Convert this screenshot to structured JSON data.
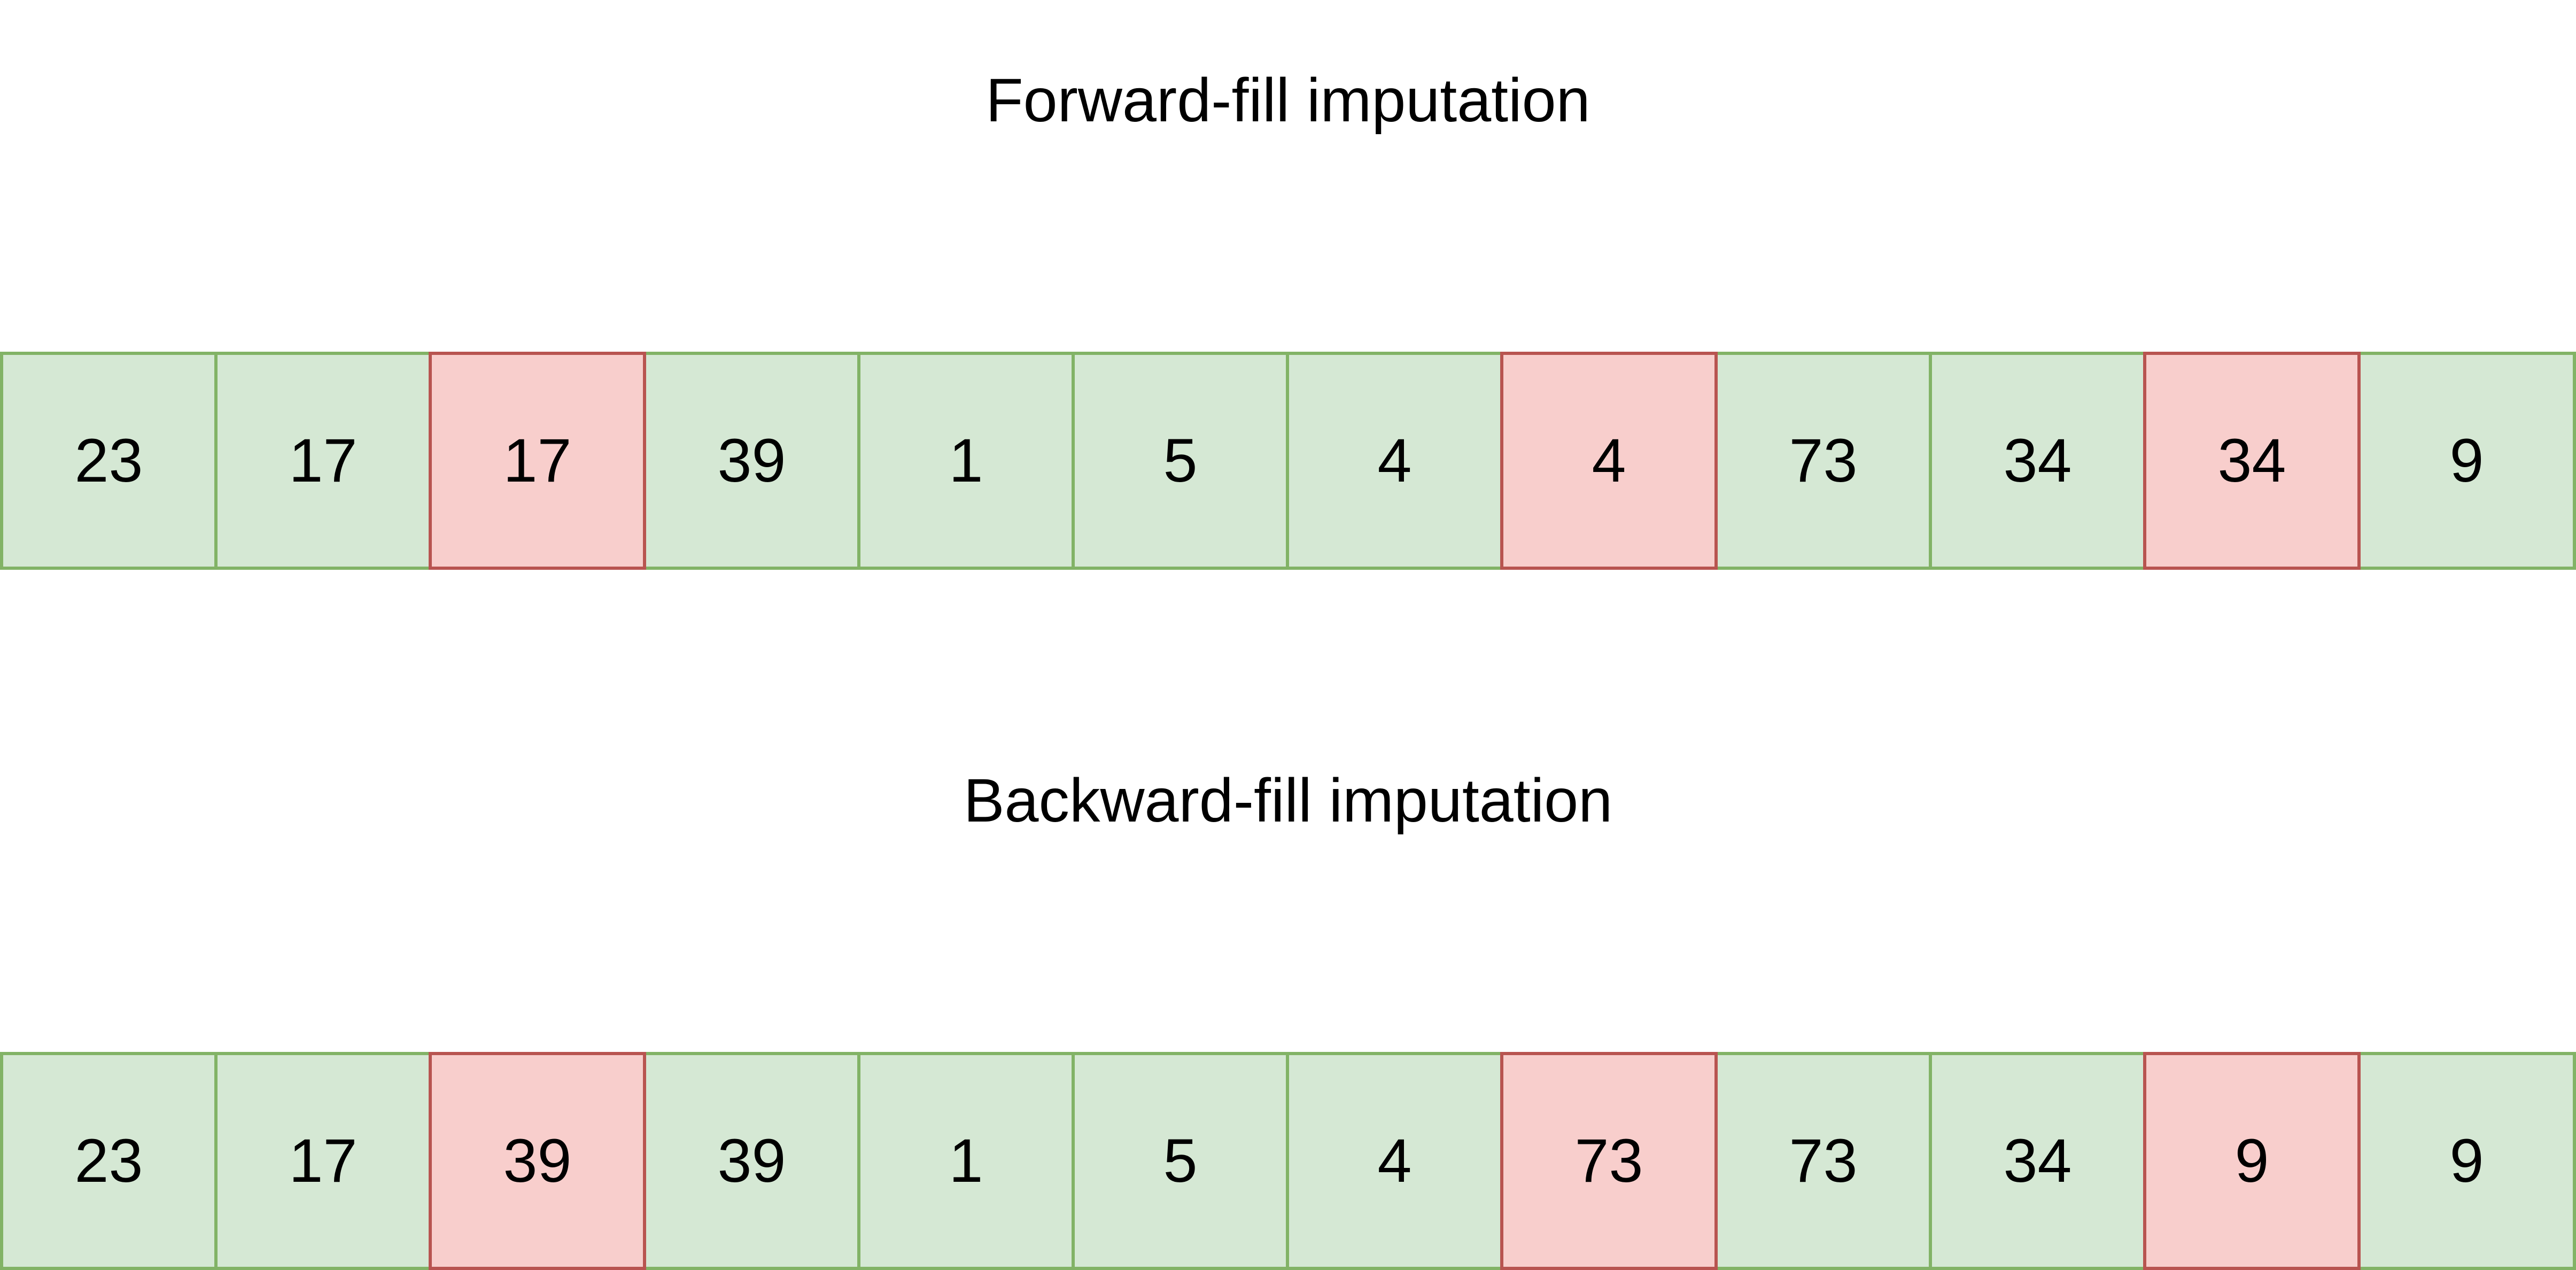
{
  "colors": {
    "observed_fill": "#d5e8d4",
    "observed_border": "#82b366",
    "imputed_fill": "#f8cecc",
    "imputed_border": "#b85450"
  },
  "forward": {
    "title": "Forward-fill imputation",
    "cells": [
      {
        "value": "23",
        "imputed": false
      },
      {
        "value": "17",
        "imputed": false
      },
      {
        "value": "17",
        "imputed": true
      },
      {
        "value": "39",
        "imputed": false
      },
      {
        "value": "1",
        "imputed": false
      },
      {
        "value": "5",
        "imputed": false
      },
      {
        "value": "4",
        "imputed": false
      },
      {
        "value": "4",
        "imputed": true
      },
      {
        "value": "73",
        "imputed": false
      },
      {
        "value": "34",
        "imputed": false
      },
      {
        "value": "34",
        "imputed": true
      },
      {
        "value": "9",
        "imputed": false
      }
    ]
  },
  "backward": {
    "title": "Backward-fill imputation",
    "cells": [
      {
        "value": "23",
        "imputed": false
      },
      {
        "value": "17",
        "imputed": false
      },
      {
        "value": "39",
        "imputed": true
      },
      {
        "value": "39",
        "imputed": false
      },
      {
        "value": "1",
        "imputed": false
      },
      {
        "value": "5",
        "imputed": false
      },
      {
        "value": "4",
        "imputed": false
      },
      {
        "value": "73",
        "imputed": true
      },
      {
        "value": "73",
        "imputed": false
      },
      {
        "value": "34",
        "imputed": false
      },
      {
        "value": "9",
        "imputed": true
      },
      {
        "value": "9",
        "imputed": false
      }
    ]
  }
}
